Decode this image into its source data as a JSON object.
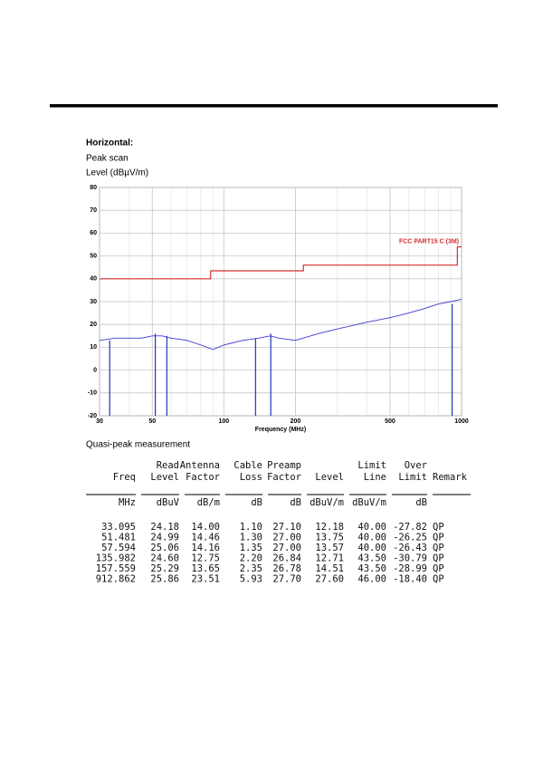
{
  "document": {
    "heading": "Horizontal:",
    "scan": "Peak scan",
    "y_axis_title": "Level (dBµV/m)",
    "qp_title": "Quasi-peak measurement"
  },
  "chart_data": {
    "type": "line",
    "xscale": "log",
    "xlim": [
      30,
      1000
    ],
    "xticks": [
      30,
      50,
      100,
      200,
      500,
      1000
    ],
    "ylim": [
      -20,
      80
    ],
    "yticks": [
      -20,
      -10,
      0,
      10,
      20,
      30,
      40,
      50,
      60,
      70,
      80
    ],
    "grid": true,
    "x_label": "Frequency (MHz)",
    "annotation": "FCC PART15 C (3M)",
    "series": [
      {
        "kind": "step",
        "color": "#d03030",
        "x": [
          30,
          88,
          88,
          216,
          216,
          960,
          960,
          1000
        ],
        "values": [
          40,
          40,
          43.5,
          43.5,
          46,
          46,
          54,
          54
        ]
      },
      {
        "kind": "trace",
        "color": "#3a3ad0",
        "x": [
          30,
          35,
          40,
          45,
          50,
          55,
          60,
          70,
          80,
          90,
          100,
          120,
          140,
          157,
          170,
          200,
          250,
          300,
          400,
          500,
          600,
          700,
          800,
          900,
          1000
        ],
        "values": [
          13,
          14,
          14,
          14,
          15,
          15,
          14,
          13,
          11,
          9,
          11,
          13,
          14,
          15,
          14,
          13,
          16,
          18,
          21,
          23,
          25,
          27,
          29,
          30,
          31
        ]
      },
      {
        "kind": "marker",
        "color": "#3040c0",
        "x": [
          33.095,
          51.481,
          57.594,
          135.982,
          157.559,
          912.862
        ],
        "values": [
          13,
          16,
          15,
          14,
          16,
          29
        ]
      }
    ]
  },
  "measurement": {
    "columns": [
      {
        "bottom": "Freq",
        "unit": "MHz"
      },
      {
        "top": "Read",
        "bottom": "Level",
        "unit": "dBuV"
      },
      {
        "top": "Antenna",
        "bottom": "Factor",
        "unit": "dB/m"
      },
      {
        "top": "Cable",
        "bottom": "Loss",
        "unit": "dB"
      },
      {
        "top": "Preamp",
        "bottom": "Factor",
        "unit": "dB"
      },
      {
        "bottom": "Level",
        "unit": "dBuV/m"
      },
      {
        "top": "Limit",
        "bottom": "Line",
        "unit": "dBuV/m"
      },
      {
        "top": "Over",
        "bottom": "Limit",
        "unit": "dB"
      },
      {
        "bottom": "Remark"
      }
    ],
    "rows": [
      [
        "33.095",
        "24.18",
        "14.00",
        "1.10",
        "27.10",
        "12.18",
        "40.00",
        "-27.82",
        "QP"
      ],
      [
        "51.481",
        "24.99",
        "14.46",
        "1.30",
        "27.00",
        "13.75",
        "40.00",
        "-26.25",
        "QP"
      ],
      [
        "57.594",
        "25.06",
        "14.16",
        "1.35",
        "27.00",
        "13.57",
        "40.00",
        "-26.43",
        "QP"
      ],
      [
        "135.982",
        "24.60",
        "12.75",
        "2.20",
        "26.84",
        "12.71",
        "43.50",
        "-30.79",
        "QP"
      ],
      [
        "157.559",
        "25.29",
        "13.65",
        "2.35",
        "26.78",
        "14.51",
        "43.50",
        "-28.99",
        "QP"
      ],
      [
        "912.862",
        "25.86",
        "23.51",
        "5.93",
        "27.70",
        "27.60",
        "46.00",
        "-18.40",
        "QP"
      ]
    ]
  }
}
